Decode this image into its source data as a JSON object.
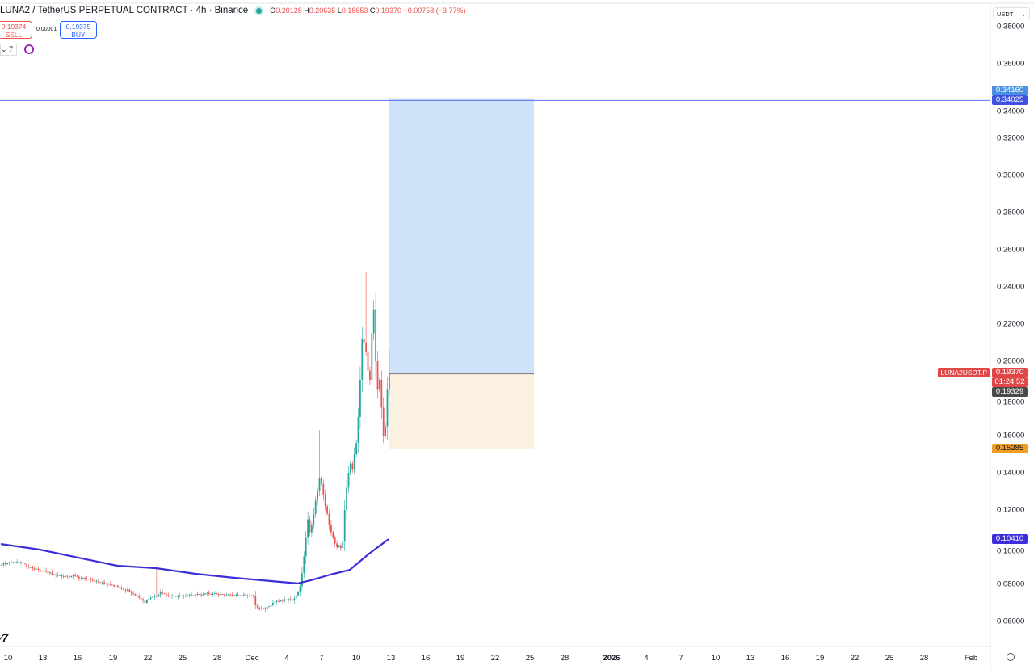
{
  "header": {
    "title": "LUNA2 / TetherUS PERPETUAL CONTRACT · 4h · Binance",
    "o_label": "O",
    "o": "0.20128",
    "h_label": "H",
    "h": "0.20635",
    "l_label": "L",
    "l": "0.18653",
    "c_label": "C",
    "c": "0.19370",
    "change": "−0.00758 (−3.77%)"
  },
  "trade": {
    "sell_price": "0.19374",
    "sell_label": "SELL",
    "spread": "0.00001",
    "buy_price": "0.19375",
    "buy_label": "BUY"
  },
  "indicators": {
    "count": "⌄ 7"
  },
  "currency": {
    "selected": "USDT"
  },
  "logo_text": "17",
  "colors": {
    "up": "#26a69a",
    "down": "#ef5350",
    "ma": "#3c2ed8",
    "target_zone": "#cfe2fa",
    "stop_zone": "#fbf1e0",
    "hline": "#5b6ee8",
    "stop_tag": "#f29d26",
    "last_tag": "#e04848"
  },
  "chart_data": {
    "type": "candlestick",
    "interval": "4h",
    "ylim": [
      0.06,
      0.38
    ],
    "y_ticks": [
      "0.38000",
      "0.36000",
      "0.34000",
      "0.32000",
      "0.30000",
      "0.28000",
      "0.26000",
      "0.24000",
      "0.22000",
      "0.20000",
      "0.18000",
      "0.16000",
      "0.14000",
      "0.12000",
      "0.10000",
      "0.08000",
      "0.06000"
    ],
    "x_ticks": [
      "10",
      "13",
      "16",
      "19",
      "22",
      "25",
      "28",
      "Dec",
      "4",
      "7",
      "10",
      "13",
      "16",
      "19",
      "22",
      "25",
      "28",
      "2026",
      "4",
      "7",
      "10",
      "13",
      "16",
      "19",
      "22",
      "25",
      "28",
      "Feb"
    ],
    "closes": [
      0.0905,
      0.0912,
      0.0908,
      0.0915,
      0.0918,
      0.0914,
      0.092,
      0.0917,
      0.0921,
      0.0916,
      0.0919,
      0.0912,
      0.0908,
      0.0895,
      0.089,
      0.0893,
      0.0885,
      0.088,
      0.0884,
      0.0878,
      0.0872,
      0.087,
      0.0875,
      0.0868,
      0.086,
      0.0864,
      0.0855,
      0.085,
      0.0852,
      0.0846,
      0.0849,
      0.0843,
      0.084,
      0.0845,
      0.0842,
      0.0838,
      0.0844,
      0.0849,
      0.0846,
      0.084,
      0.0832,
      0.0828,
      0.0835,
      0.083,
      0.0826,
      0.083,
      0.0824,
      0.082,
      0.0815,
      0.0818,
      0.0812,
      0.0808,
      0.0811,
      0.0805,
      0.08,
      0.0803,
      0.0798,
      0.0795,
      0.079,
      0.0793,
      0.0786,
      0.078,
      0.0776,
      0.077,
      0.0765,
      0.0772,
      0.076,
      0.0752,
      0.0748,
      0.074,
      0.0735,
      0.0728,
      0.072,
      0.0712,
      0.07,
      0.0715,
      0.0722,
      0.0728,
      0.0732,
      0.0738,
      0.0734,
      0.0745,
      0.076,
      0.0752,
      0.0748,
      0.0742,
      0.0738,
      0.0735,
      0.074,
      0.0737,
      0.0733,
      0.0736,
      0.074,
      0.0738,
      0.0735,
      0.0739,
      0.0742,
      0.0745,
      0.0741,
      0.0738,
      0.0744,
      0.0748,
      0.0746,
      0.0742,
      0.0745,
      0.075,
      0.0754,
      0.0748,
      0.0745,
      0.0749,
      0.0752,
      0.0747,
      0.0744,
      0.0748,
      0.0745,
      0.0741,
      0.0743,
      0.0746,
      0.0744,
      0.074,
      0.0742,
      0.0745,
      0.0741,
      0.0738,
      0.0742,
      0.0745,
      0.074,
      0.0737,
      0.0739,
      0.0741,
      0.0738,
      0.069,
      0.0675,
      0.067,
      0.0668,
      0.0672,
      0.0665,
      0.0678,
      0.0682,
      0.069,
      0.07,
      0.0705,
      0.071,
      0.0708,
      0.0715,
      0.0712,
      0.0718,
      0.0714,
      0.072,
      0.0716,
      0.0712,
      0.0725,
      0.074,
      0.076,
      0.079,
      0.086,
      0.095,
      0.105,
      0.115,
      0.108,
      0.112,
      0.118,
      0.125,
      0.13,
      0.137,
      0.134,
      0.128,
      0.122,
      0.118,
      0.112,
      0.108,
      0.105,
      0.102,
      0.1,
      0.101,
      0.0995,
      0.103,
      0.12,
      0.132,
      0.14,
      0.145,
      0.142,
      0.15,
      0.156,
      0.17,
      0.19,
      0.212,
      0.21,
      0.205,
      0.195,
      0.19,
      0.215,
      0.228,
      0.2,
      0.185,
      0.19,
      0.175,
      0.16,
      0.165,
      0.185,
      0.1937
    ],
    "notable_highs": [
      [
        80,
        0.0885
      ],
      [
        164,
        0.163
      ],
      [
        188,
        0.248
      ],
      [
        192,
        0.233
      ],
      [
        200,
        0.2064
      ]
    ],
    "notable_lows": [
      [
        72,
        0.0635
      ],
      [
        197,
        0.156
      ]
    ],
    "moving_average": [
      [
        0,
        0.1017
      ],
      [
        20,
        0.0987
      ],
      [
        40,
        0.0943
      ],
      [
        60,
        0.09
      ],
      [
        80,
        0.0887
      ],
      [
        100,
        0.0857
      ],
      [
        120,
        0.0835
      ],
      [
        140,
        0.0817
      ],
      [
        153,
        0.0805
      ],
      [
        160,
        0.0822
      ],
      [
        170,
        0.0852
      ],
      [
        180,
        0.0878
      ],
      [
        190,
        0.0965
      ],
      [
        200,
        0.1043
      ]
    ],
    "position": {
      "type": "long",
      "entry": 0.19329,
      "target": 0.3416,
      "stop": 0.15285
    },
    "horizontal_line": 0.34025,
    "last_price": 0.1937
  },
  "price_tags": {
    "target": "0.34160",
    "hline": "0.34025",
    "symbol": "LUNA2USDT.P",
    "last": "0.19370",
    "countdown": "01:24:52",
    "entry": "0.19329",
    "stop": "0.15285",
    "ma": "0.10410"
  }
}
